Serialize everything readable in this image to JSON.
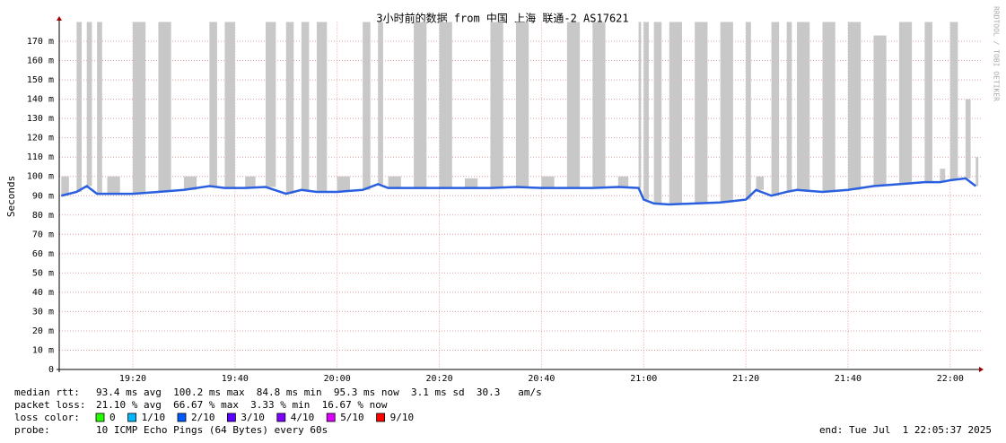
{
  "chart_data": {
    "type": "line",
    "title": "3小时前的数据 from 中国 上海 联通-2 AS17621",
    "y_label": "Seconds",
    "watermark": "RRDTOOL / TOBI OETIKER",
    "x": [
      1146,
      1149,
      1151,
      1153,
      1155,
      1160,
      1165,
      1170,
      1175,
      1178,
      1182,
      1186,
      1190,
      1193,
      1196,
      1200,
      1205,
      1208,
      1210,
      1215,
      1220,
      1225,
      1230,
      1235,
      1240,
      1245,
      1250,
      1255,
      1259,
      1260,
      1262,
      1265,
      1270,
      1275,
      1280,
      1282,
      1285,
      1288,
      1290,
      1295,
      1300,
      1305,
      1310,
      1315,
      1318,
      1320,
      1323,
      1325
    ],
    "series": [
      {
        "color": "#2a5fe0",
        "values": [
          0.09,
          0.092,
          0.095,
          0.091,
          0.091,
          0.091,
          0.092,
          0.093,
          0.095,
          0.094,
          0.094,
          0.0945,
          0.091,
          0.093,
          0.092,
          0.092,
          0.093,
          0.096,
          0.094,
          0.094,
          0.094,
          0.094,
          0.094,
          0.0945,
          0.094,
          0.094,
          0.094,
          0.0945,
          0.094,
          0.088,
          0.086,
          0.0855,
          0.086,
          0.0865,
          0.088,
          0.093,
          0.09,
          0.092,
          0.093,
          0.092,
          0.093,
          0.095,
          0.096,
          0.097,
          0.097,
          0.098,
          0.099,
          0.095
        ]
      },
      {
        "color": "#c8c8c8",
        "values": [
          0.1,
          0.18,
          0.18,
          0.18,
          0.1,
          0.18,
          0.18,
          0.1,
          0.18,
          0.18,
          0.1,
          0.18,
          0.18,
          0.18,
          0.18,
          0.1,
          0.18,
          0.18,
          0.1,
          0.18,
          0.18,
          0.099,
          0.18,
          0.18,
          0.1,
          0.18,
          0.18,
          0.1,
          0.18,
          0.18,
          0.18,
          0.18,
          0.18,
          0.18,
          0.18,
          0.1,
          0.18,
          0.18,
          0.18,
          0.18,
          0.18,
          0.173,
          0.18,
          0.18,
          0.104,
          0.18,
          0.14,
          0.11
        ]
      }
    ],
    "xlim": [
      1145.6,
      1326
    ],
    "xticks": [
      {
        "value": 1160,
        "label": "19:20"
      },
      {
        "value": 1180,
        "label": "19:40"
      },
      {
        "value": 1200,
        "label": "20:00"
      },
      {
        "value": 1220,
        "label": "20:20"
      },
      {
        "value": 1240,
        "label": "20:40"
      },
      {
        "value": 1260,
        "label": "21:00"
      },
      {
        "value": 1280,
        "label": "21:20"
      },
      {
        "value": 1300,
        "label": "21:40"
      },
      {
        "value": 1320,
        "label": "22:00"
      }
    ],
    "ylim": [
      0,
      0.18
    ],
    "yticks": [
      0,
      {
        "value": 0.01,
        "label": "10 m"
      },
      {
        "value": 0.02,
        "label": "20 m"
      },
      {
        "value": 0.03,
        "label": "30 m"
      },
      {
        "value": 0.04,
        "label": "40 m"
      },
      {
        "value": 0.05,
        "label": "50 m"
      },
      {
        "value": 0.06,
        "label": "60 m"
      },
      {
        "value": 0.07,
        "label": "70 m"
      },
      {
        "value": 0.08,
        "label": "80 m"
      },
      {
        "value": 0.09,
        "label": "90 m"
      },
      {
        "value": 0.1,
        "label": "100 m"
      },
      {
        "value": 0.11,
        "label": "110 m"
      },
      {
        "value": 0.12,
        "label": "120 m"
      },
      {
        "value": 0.13,
        "label": "130 m"
      },
      {
        "value": 0.14,
        "label": "140 m"
      },
      {
        "value": 0.15,
        "label": "150 m"
      },
      {
        "value": 0.16,
        "label": "160 m"
      },
      {
        "value": 0.17,
        "label": "170 m"
      }
    ],
    "grid": true,
    "stats": [
      {
        "label": "median rtt:",
        "text": "93.4 ms avg  100.2 ms max  84.8 ms min  95.3 ms now  3.1 ms sd  30.3   am/s"
      },
      {
        "label": "packet loss:",
        "text": "21.10 % avg  66.67 % max  3.33 % min  16.67 % now"
      }
    ],
    "loss_label": "loss color:",
    "loss_colors": [
      {
        "label": "0",
        "color": "#26ff00"
      },
      {
        "label": "1/10",
        "color": "#00b8ff"
      },
      {
        "label": "2/10",
        "color": "#0059ff"
      },
      {
        "label": "3/10",
        "color": "#5e00ff"
      },
      {
        "label": "4/10",
        "color": "#7e00ff"
      },
      {
        "label": "5/10",
        "color": "#dd00ff"
      },
      {
        "label": "9/10",
        "color": "#ff0000"
      }
    ],
    "probe_label": "probe:",
    "probe": "10 ICMP Echo Pings (64 Bytes) every 60s",
    "end": "end: Tue Jul  1 22:05:37 2025"
  }
}
